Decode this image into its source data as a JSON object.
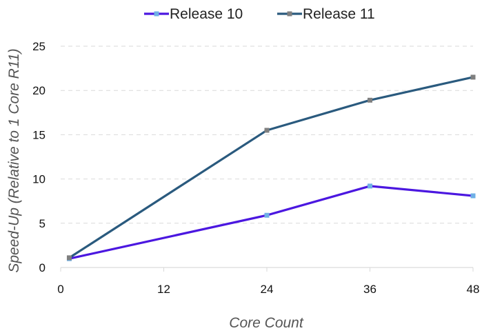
{
  "chart_data": {
    "type": "line",
    "title": "",
    "xlabel": "Core Count",
    "ylabel": "Speed-Up (Relative to 1 Core  R11)",
    "x": [
      1,
      24,
      36,
      48
    ],
    "xlim": [
      0,
      48
    ],
    "ylim": [
      0,
      25
    ],
    "xticks": [
      0,
      12,
      24,
      36,
      48
    ],
    "yticks": [
      0,
      5,
      10,
      15,
      20,
      25
    ],
    "grid": "horizontal dashed",
    "legend_position": "top-center",
    "series": [
      {
        "name": "Release 10",
        "values": [
          1.0,
          5.9,
          9.2,
          8.1
        ],
        "color": "#4b17e0",
        "marker_color": "#6fb0e6"
      },
      {
        "name": "Release 11",
        "values": [
          1.1,
          15.5,
          18.9,
          21.5
        ],
        "color": "#2a5a7e",
        "marker_color": "#7f7f7f"
      }
    ]
  }
}
